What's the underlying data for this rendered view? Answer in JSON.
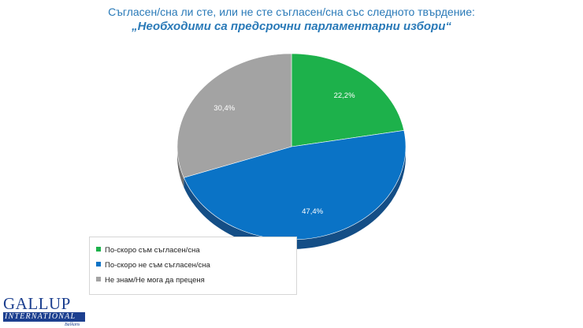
{
  "header": {
    "title_line1": "Съгласен/сна ли сте, или не сте съгласен/сна със следното твърдение:",
    "title_line2": "„Необходими са предсрочни парламентарни избори“"
  },
  "chart_data": {
    "type": "pie",
    "title": "„Необходими са предсрочни парламентарни избори“",
    "subtitle": "Съгласен/сна ли сте, или не сте съгласен/сна със следното твърдение:",
    "style": "3d",
    "legend_position": "bottom-left",
    "slices": [
      {
        "name": "По-скоро съм съгласен/сна",
        "value": 22.2,
        "label": "22,2%",
        "color": "#1db14b",
        "side_color": "#128238"
      },
      {
        "name": "По-скоро не съм съгласен/сна",
        "value": 47.4,
        "label": "47,4%",
        "color": "#0a73c6",
        "side_color": "#144e86"
      },
      {
        "name": "Не знам/Не мога да преценя",
        "value": 30.4,
        "label": "30,4%",
        "color": "#a3a3a3",
        "side_color": "#6f6f6f"
      }
    ]
  },
  "logo": {
    "main": "GALLUP",
    "band": "INTERNATIONAL",
    "sub": "Balkans"
  }
}
